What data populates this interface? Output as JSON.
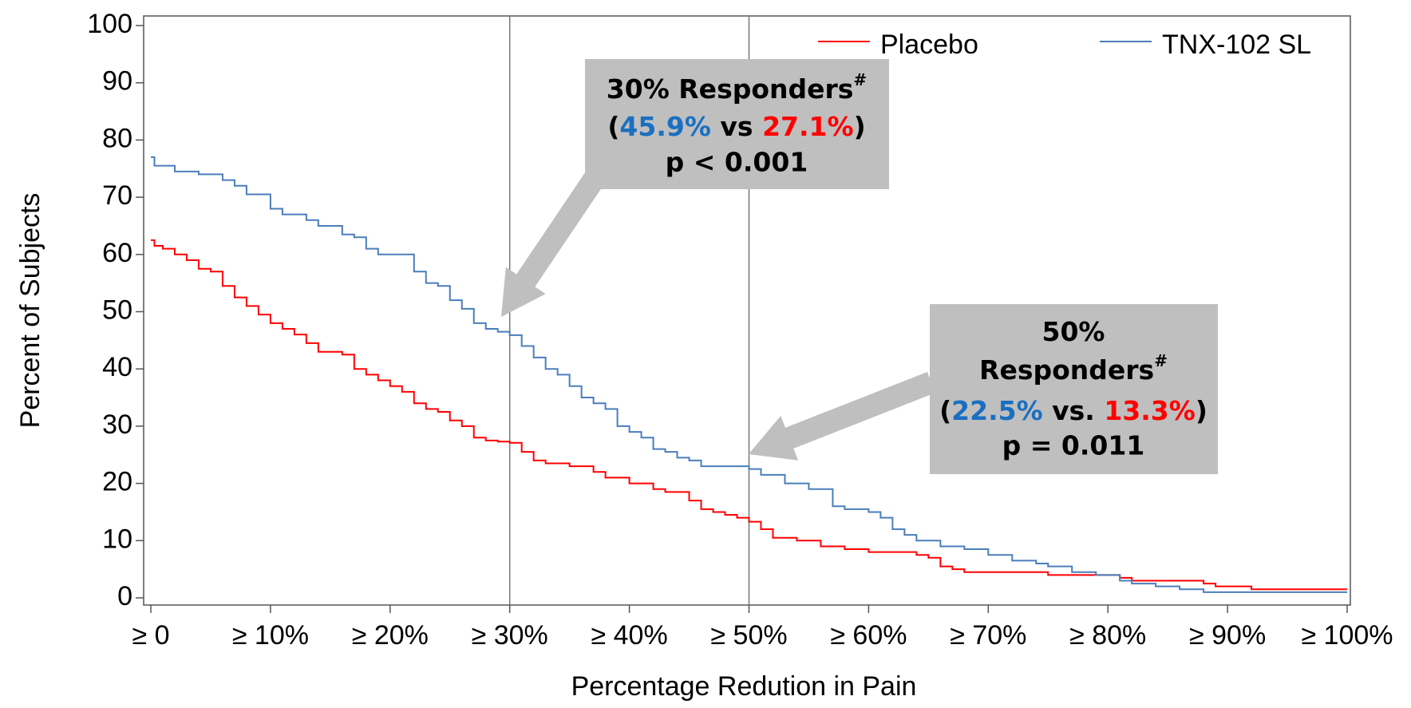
{
  "chart_data": {
    "type": "step",
    "x_label": "Percentage Redution in Pain",
    "y_label": "Percent of Subjects",
    "xlim": [
      0,
      100
    ],
    "ylim": [
      0,
      100
    ],
    "xticks": [
      {
        "value": 0,
        "label": "≥ 0"
      },
      {
        "value": 10,
        "label": "≥ 10%"
      },
      {
        "value": 20,
        "label": "≥ 20%"
      },
      {
        "value": 30,
        "label": "≥ 30%"
      },
      {
        "value": 40,
        "label": "≥ 40%"
      },
      {
        "value": 50,
        "label": "≥ 50%"
      },
      {
        "value": 60,
        "label": "≥ 60%"
      },
      {
        "value": 70,
        "label": "≥ 70%"
      },
      {
        "value": 80,
        "label": "≥ 80%"
      },
      {
        "value": 90,
        "label": "≥ 90%"
      },
      {
        "value": 100,
        "label": "≥ 100%"
      }
    ],
    "yticks": [
      0,
      10,
      20,
      30,
      40,
      50,
      60,
      70,
      80,
      90,
      100
    ],
    "reference_lines": [
      30,
      50
    ],
    "legend": "top-right",
    "series": [
      {
        "name": "Placebo",
        "color": "#ff0000",
        "x": [
          0,
          0.3,
          1,
          2,
          3,
          4,
          5,
          6,
          7,
          8,
          9,
          10,
          11,
          12,
          13,
          14,
          16,
          17,
          18,
          19,
          20,
          21,
          22,
          23,
          24,
          25,
          26,
          27,
          28,
          29,
          30,
          31,
          32,
          33,
          35,
          37,
          38,
          40,
          42,
          43,
          45,
          46,
          47,
          48,
          49,
          50,
          51,
          52,
          54,
          56,
          58,
          60,
          64,
          65,
          66,
          67,
          68,
          74,
          75,
          80,
          81,
          82,
          88,
          89,
          92,
          100
        ],
        "values": [
          62.5,
          61.5,
          61,
          60,
          59,
          57.5,
          57,
          54.5,
          52.5,
          51,
          49.5,
          48,
          47,
          46,
          44.5,
          43,
          42.5,
          40,
          39,
          38,
          37,
          36,
          34,
          33,
          32.5,
          31,
          30,
          28,
          27.5,
          27.3,
          27.1,
          25.5,
          24,
          23.5,
          23,
          22,
          21,
          20,
          19,
          18.5,
          17,
          15.5,
          15,
          14.5,
          14,
          13.3,
          12,
          10.5,
          10,
          9,
          8.5,
          8,
          7.5,
          7,
          5.5,
          5,
          4.5,
          4.5,
          4,
          4,
          3.5,
          3,
          2.5,
          2,
          1.5,
          1.5
        ]
      },
      {
        "name": "TNX-102 SL",
        "color": "#4a7ebb",
        "x": [
          0,
          0.3,
          2,
          4,
          6,
          7,
          8,
          10,
          11,
          13,
          14,
          16,
          17,
          18,
          19,
          21,
          22,
          23,
          24,
          25,
          26,
          27,
          28,
          29,
          30,
          31,
          32,
          33,
          34,
          35,
          36,
          37,
          38,
          39,
          40,
          41,
          42,
          43,
          44,
          45,
          46,
          48,
          50,
          51,
          53,
          55,
          57,
          58,
          60,
          61,
          62,
          63,
          64,
          66,
          68,
          70,
          72,
          74,
          75,
          77,
          79,
          81,
          82,
          84,
          86,
          88,
          100
        ],
        "values": [
          77,
          75.5,
          74.5,
          74,
          73,
          72,
          70.5,
          68,
          67,
          66,
          65,
          63.5,
          63,
          61,
          60,
          60,
          57,
          55,
          54.5,
          52,
          50.5,
          48,
          47,
          46.5,
          45.9,
          44,
          42,
          40,
          39,
          37,
          35,
          34,
          33,
          30,
          29,
          28,
          26,
          25.5,
          24.5,
          24,
          23,
          23,
          22.5,
          21.5,
          20,
          19,
          16,
          15.5,
          15,
          14,
          12,
          11,
          10,
          9,
          8.5,
          7.5,
          6.5,
          6,
          5.5,
          4.5,
          4,
          3,
          2.5,
          2,
          1.5,
          1,
          1
        ]
      }
    ],
    "annotations": [
      {
        "title": [
          "30% Responders"
        ],
        "superscript": "#",
        "open": "(",
        "tnx": "45.9%",
        "sep": " vs ",
        "placebo": "27.1%",
        "close": ")",
        "p": "p < 0.001"
      },
      {
        "title": [
          "50%",
          "Responders"
        ],
        "superscript": "#",
        "open": "(",
        "tnx": "22.5%",
        "sep": " vs. ",
        "placebo": "13.3%",
        "close": ")",
        "p": "p = 0.011"
      }
    ]
  }
}
